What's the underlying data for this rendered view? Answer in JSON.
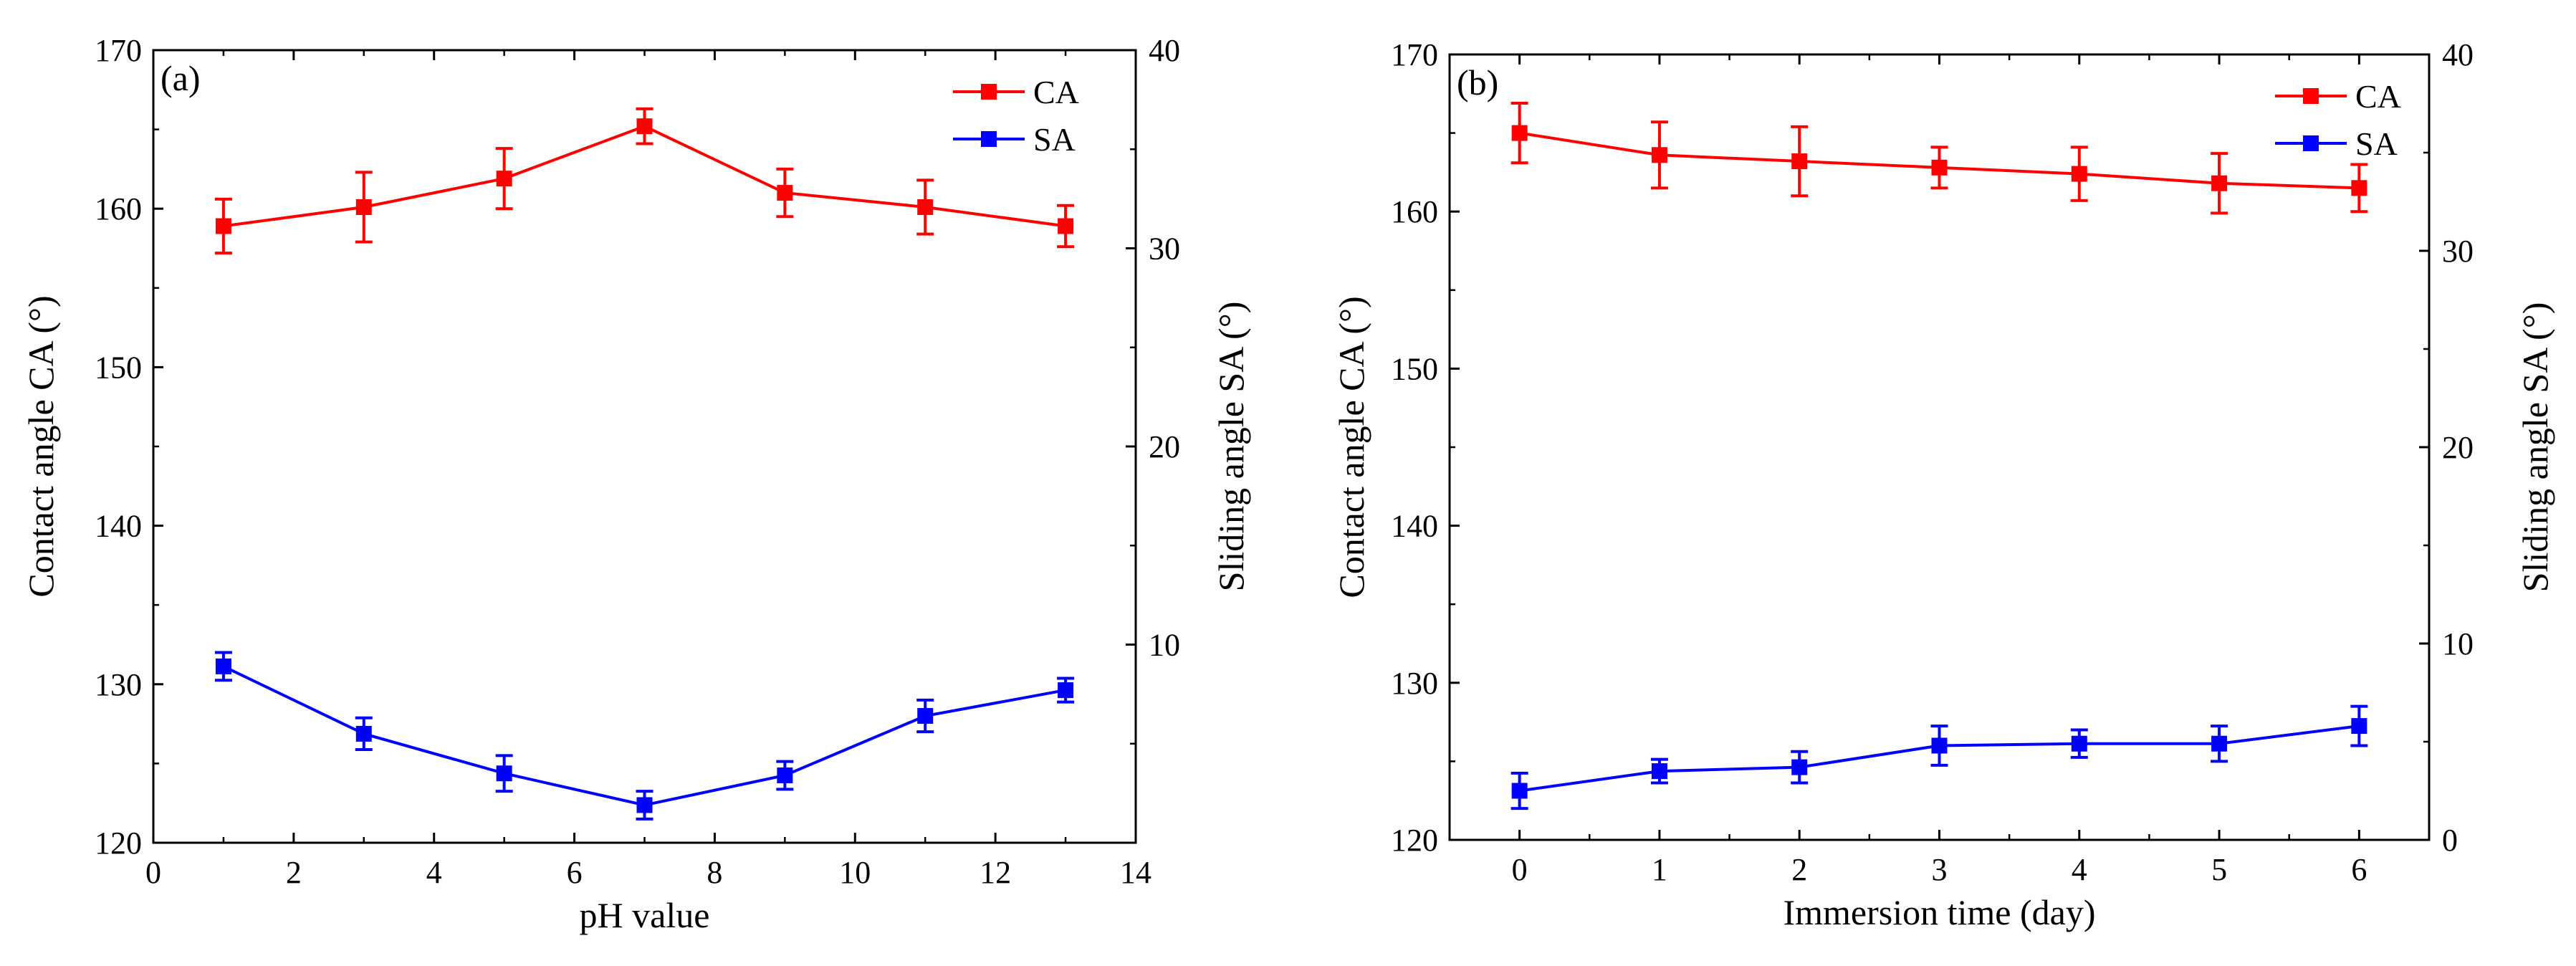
{
  "chart_data": [
    {
      "type": "line",
      "panel_label": "(a)",
      "xlabel": "pH value",
      "ylabel_left": "Contact angle CA (°)",
      "ylabel_right": "Sliding angle SA (°)",
      "xlim": [
        0,
        14
      ],
      "xticks": [
        0,
        2,
        4,
        6,
        8,
        10,
        12,
        14
      ],
      "ylim_left": [
        120,
        170
      ],
      "yticks_left": [
        120,
        130,
        140,
        150,
        160,
        170
      ],
      "ylim_right": [
        0,
        40
      ],
      "yticks_right": [
        10,
        20,
        30,
        40
      ],
      "legend_position": "top-right",
      "grid": false,
      "series": [
        {
          "name": "CA",
          "axis": "left",
          "color": "#ff0000",
          "x": [
            1,
            3,
            5,
            7,
            9,
            11,
            13
          ],
          "y": [
            158.9,
            160.1,
            161.9,
            165.2,
            161.0,
            160.1,
            158.9
          ],
          "err": [
            1.7,
            2.2,
            1.9,
            1.1,
            1.5,
            1.7,
            1.3
          ]
        },
        {
          "name": "SA",
          "axis": "right",
          "color": "#0000ff",
          "x": [
            1,
            3,
            5,
            7,
            9,
            11,
            13
          ],
          "y": [
            8.9,
            5.5,
            3.5,
            1.9,
            3.4,
            6.4,
            7.7
          ],
          "err": [
            0.7,
            0.8,
            0.9,
            0.7,
            0.7,
            0.8,
            0.6
          ]
        }
      ]
    },
    {
      "type": "line",
      "panel_label": "(b)",
      "xlabel": "Immersion time (day)",
      "ylabel_left": "Contact angle CA (°)",
      "ylabel_right": "Sliding angle SA (°)",
      "xlim": [
        -0.5,
        6.5
      ],
      "xticks": [
        0,
        1,
        2,
        3,
        4,
        5,
        6
      ],
      "ylim_left": [
        120,
        170
      ],
      "yticks_left": [
        120,
        130,
        140,
        150,
        160,
        170
      ],
      "ylim_right": [
        0,
        40
      ],
      "yticks_right": [
        0,
        10,
        20,
        30,
        40
      ],
      "legend_position": "top-right",
      "grid": false,
      "series": [
        {
          "name": "CA",
          "axis": "left",
          "color": "#ff0000",
          "x": [
            0,
            1,
            2,
            3,
            4,
            5,
            6
          ],
          "y": [
            165.0,
            163.6,
            163.2,
            162.8,
            162.4,
            161.8,
            161.5
          ],
          "err": [
            1.9,
            2.1,
            2.2,
            1.3,
            1.7,
            1.9,
            1.5
          ]
        },
        {
          "name": "SA",
          "axis": "right",
          "color": "#0000ff",
          "x": [
            0,
            1,
            2,
            3,
            4,
            5,
            6
          ],
          "y": [
            2.5,
            3.5,
            3.7,
            4.8,
            4.9,
            4.9,
            5.8
          ],
          "err": [
            0.9,
            0.6,
            0.8,
            1.0,
            0.7,
            0.9,
            1.0
          ]
        }
      ]
    }
  ]
}
